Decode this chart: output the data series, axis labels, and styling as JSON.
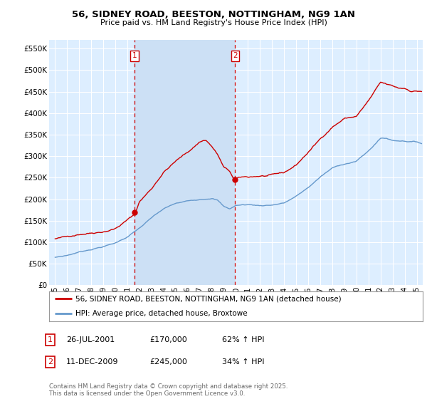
{
  "title": "56, SIDNEY ROAD, BEESTON, NOTTINGHAM, NG9 1AN",
  "subtitle": "Price paid vs. HM Land Registry's House Price Index (HPI)",
  "legend_line1": "56, SIDNEY ROAD, BEESTON, NOTTINGHAM, NG9 1AN (detached house)",
  "legend_line2": "HPI: Average price, detached house, Broxtowe",
  "footnote": "Contains HM Land Registry data © Crown copyright and database right 2025.\nThis data is licensed under the Open Government Licence v3.0.",
  "sale1_label": "1",
  "sale1_date": "26-JUL-2001",
  "sale1_price": "£170,000",
  "sale1_hpi": "62% ↑ HPI",
  "sale2_label": "2",
  "sale2_date": "11-DEC-2009",
  "sale2_price": "£245,000",
  "sale2_hpi": "34% ↑ HPI",
  "sale1_x": 2001.57,
  "sale1_y": 170000,
  "sale2_x": 2009.94,
  "sale2_y": 245000,
  "vline1_x": 2001.57,
  "vline2_x": 2009.94,
  "ylim": [
    0,
    570000
  ],
  "xlim": [
    1994.5,
    2025.5
  ],
  "yticks": [
    0,
    50000,
    100000,
    150000,
    200000,
    250000,
    300000,
    350000,
    400000,
    450000,
    500000,
    550000
  ],
  "background_color": "#ddeeff",
  "grid_color": "#ffffff",
  "shade_color": "#cce0f5",
  "red_line_color": "#cc0000",
  "blue_line_color": "#6699cc",
  "vline_color": "#cc0000",
  "red_seed": 10,
  "blue_seed": 7,
  "red_base_x": [
    1995,
    1996,
    1997,
    1998,
    1999,
    2000,
    2001,
    2001.6,
    2002,
    2003,
    2004,
    2005,
    2006,
    2007,
    2007.5,
    2008,
    2008.5,
    2009,
    2009.5,
    2009.94,
    2010,
    2010.5,
    2011,
    2012,
    2013,
    2014,
    2015,
    2016,
    2017,
    2018,
    2019,
    2020,
    2021,
    2021.5,
    2022,
    2022.5,
    2023,
    2023.5,
    2024,
    2024.5,
    2025.4
  ],
  "red_base_y": [
    108000,
    112000,
    120000,
    125000,
    130000,
    138000,
    158000,
    170000,
    200000,
    230000,
    270000,
    295000,
    315000,
    340000,
    345000,
    330000,
    310000,
    280000,
    270000,
    245000,
    252000,
    255000,
    255000,
    258000,
    258000,
    262000,
    280000,
    310000,
    340000,
    370000,
    390000,
    395000,
    430000,
    450000,
    470000,
    465000,
    460000,
    455000,
    455000,
    450000,
    450000
  ],
  "blue_base_x": [
    1995,
    1996,
    1997,
    1998,
    1999,
    2000,
    2001,
    2002,
    2003,
    2004,
    2005,
    2006,
    2007,
    2008,
    2008.5,
    2009,
    2009.5,
    2010,
    2011,
    2012,
    2013,
    2014,
    2015,
    2016,
    2017,
    2018,
    2019,
    2020,
    2021,
    2022,
    2022.5,
    2023,
    2024,
    2025,
    2025.4
  ],
  "blue_base_y": [
    65000,
    70000,
    78000,
    85000,
    92000,
    100000,
    115000,
    135000,
    158000,
    178000,
    190000,
    195000,
    200000,
    205000,
    200000,
    185000,
    180000,
    188000,
    190000,
    188000,
    190000,
    195000,
    210000,
    230000,
    255000,
    275000,
    285000,
    292000,
    315000,
    345000,
    345000,
    340000,
    340000,
    338000,
    335000
  ]
}
